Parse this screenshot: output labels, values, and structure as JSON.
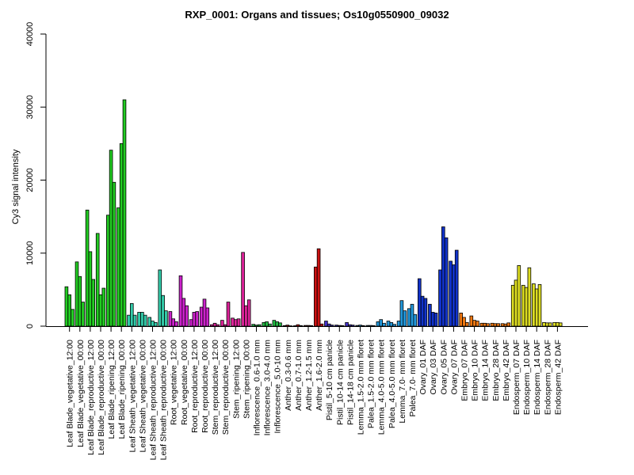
{
  "chart_data": {
    "type": "bar",
    "title": "RXP_0001: Organs and tissues; Os10g0550900_09032",
    "ylabel": "Cy3 signal intensity",
    "xlabel": "",
    "ylim": [
      0,
      40000
    ],
    "yticks": [
      0,
      10000,
      20000,
      30000,
      40000
    ],
    "grid": false,
    "legend": "none",
    "groups": [
      {
        "label": "Leaf Blade_vegetative_12:00",
        "color": "#22cc22",
        "values": [
          5400,
          4300,
          2300
        ]
      },
      {
        "label": "Leaf Blade_vegetative_00:00",
        "color": "#22cc22",
        "values": [
          8800,
          6800,
          3300
        ]
      },
      {
        "label": "Leaf Blade_reproductive_12:00",
        "color": "#22cc22",
        "values": [
          15900,
          10200,
          6400
        ]
      },
      {
        "label": "Leaf Blade_reproductive_00:00",
        "color": "#22cc22",
        "values": [
          12700,
          4300,
          5200
        ]
      },
      {
        "label": "Leaf Blade_ripening_12:00",
        "color": "#22cc22",
        "values": [
          15200,
          24100,
          19700
        ]
      },
      {
        "label": "Leaf Blade_ripening_00:00",
        "color": "#22cc22",
        "values": [
          16200,
          25000,
          31000
        ]
      },
      {
        "label": "Leaf Sheath_vegetative_12:00",
        "color": "#33ccaa",
        "values": [
          1500,
          3100,
          1500
        ]
      },
      {
        "label": "Leaf Sheath_vegetative_00:00",
        "color": "#33ccaa",
        "values": [
          1900,
          1900,
          1500
        ]
      },
      {
        "label": "Leaf Sheath_reproductive_12:00",
        "color": "#33ccaa",
        "values": [
          1200,
          700,
          500
        ]
      },
      {
        "label": "Leaf Sheath_reproductive_00:00",
        "color": "#33ccaa",
        "values": [
          7700,
          4200,
          2100
        ]
      },
      {
        "label": "Root_vegetative_12:00",
        "color": "#cc22cc",
        "values": [
          2000,
          1000,
          600
        ]
      },
      {
        "label": "Root_vegetative_00:00",
        "color": "#cc22cc",
        "values": [
          6900,
          3800,
          2800
        ]
      },
      {
        "label": "Root_reproductive_12:00",
        "color": "#cc22cc",
        "values": [
          900,
          1900,
          2000
        ]
      },
      {
        "label": "Root_reproductive_00:00",
        "color": "#cc22cc",
        "values": [
          2600,
          3700,
          2500
        ]
      },
      {
        "label": "Stem_reproductive_12:00",
        "color": "#dd2299",
        "values": [
          200,
          400,
          200
        ]
      },
      {
        "label": "Stem_reproductive_00:00",
        "color": "#dd2299",
        "values": [
          800,
          200,
          3300
        ]
      },
      {
        "label": "Stem_ripening_12:00",
        "color": "#dd2299",
        "values": [
          1100,
          900,
          1000
        ]
      },
      {
        "label": "Stem_ripening_00:00",
        "color": "#dd2299",
        "values": [
          10100,
          2800,
          3600
        ]
      },
      {
        "label": "Inflorescence_0.6-1.0 mm",
        "color": "#22bb44",
        "values": [
          250,
          150,
          200
        ]
      },
      {
        "label": "Inflorescence_3.0-4.0 mm",
        "color": "#22bb44",
        "values": [
          500,
          600,
          300
        ]
      },
      {
        "label": "Inflorescence_5.0-10 mm",
        "color": "#22bb44",
        "values": [
          800,
          600,
          450
        ]
      },
      {
        "label": "Anther_0.3-0.6 mm",
        "color": "#cc1111",
        "values": [
          80,
          150,
          50
        ]
      },
      {
        "label": "Anther_0.7-1.0 mm",
        "color": "#cc1111",
        "values": [
          60,
          200,
          80
        ]
      },
      {
        "label": "Anther_1.2-1.5 mm",
        "color": "#cc1111",
        "values": [
          100,
          100,
          80
        ]
      },
      {
        "label": "Anther_1.6-2.0 mm",
        "color": "#cc1111",
        "values": [
          8100,
          10600,
          300
        ]
      },
      {
        "label": "Pistil_5-10 cm panicle",
        "color": "#4433cc",
        "values": [
          700,
          300,
          150
        ]
      },
      {
        "label": "Pistil_10-14 cm panicle",
        "color": "#4433cc",
        "values": [
          150,
          100,
          80
        ]
      },
      {
        "label": "Pistil_14-18 cm panicle",
        "color": "#4433cc",
        "values": [
          500,
          200,
          150
        ]
      },
      {
        "label": "Lemma_1.5-2.0 mm floret",
        "color": "#2299dd",
        "values": [
          100,
          150,
          80
        ]
      },
      {
        "label": "Palea_1.5-2.0 mm floret",
        "color": "#2299dd",
        "values": [
          100,
          100,
          80
        ]
      },
      {
        "label": "Lemma_4.0-5.0 mm floret",
        "color": "#2299dd",
        "values": [
          600,
          900,
          400
        ]
      },
      {
        "label": "Palea_4.0-5.0 mm floret",
        "color": "#2299dd",
        "values": [
          700,
          500,
          250
        ]
      },
      {
        "label": "Lemma_7.0- mm floret",
        "color": "#2299dd",
        "values": [
          700,
          3500,
          2100
        ]
      },
      {
        "label": "Palea_7.0- mm floret",
        "color": "#2299dd",
        "values": [
          2400,
          3000,
          1600
        ]
      },
      {
        "label": "Ovary_01 DAF",
        "color": "#1133cc",
        "values": [
          6500,
          4100,
          3800
        ]
      },
      {
        "label": "Ovary_03 DAF",
        "color": "#1133cc",
        "values": [
          3000,
          1900,
          1800
        ]
      },
      {
        "label": "Ovary_05 DAF",
        "color": "#1133cc",
        "values": [
          7700,
          13600,
          12100
        ]
      },
      {
        "label": "Ovary_07 DAF",
        "color": "#1133cc",
        "values": [
          8900,
          8400,
          10400
        ]
      },
      {
        "label": "Embryo_07 DAF",
        "color": "#ee7711",
        "values": [
          1800,
          1200,
          500
        ]
      },
      {
        "label": "Embryo_10 DAF",
        "color": "#ee7711",
        "values": [
          1400,
          800,
          700
        ]
      },
      {
        "label": "Embryo_14 DAF",
        "color": "#ee7711",
        "values": [
          400,
          400,
          350
        ]
      },
      {
        "label": "Embryo_28 DAF",
        "color": "#ee7711",
        "values": [
          400,
          350,
          350
        ]
      },
      {
        "label": "Embryo_42 DAF",
        "color": "#ee7711",
        "values": [
          350,
          300,
          450
        ]
      },
      {
        "label": "Endosperm_07 DAF",
        "color": "#dddd22",
        "values": [
          5600,
          6300,
          8300
        ]
      },
      {
        "label": "Endosperm_10 DAF",
        "color": "#dddd22",
        "values": [
          5600,
          5300,
          8000
        ]
      },
      {
        "label": "Endosperm_14 DAF",
        "color": "#dddd22",
        "values": [
          5800,
          5100,
          5700
        ]
      },
      {
        "label": "Endosperm_28 DAF",
        "color": "#dddd22",
        "values": [
          500,
          450,
          450
        ]
      },
      {
        "label": "Endosperm_42 DAF",
        "color": "#dddd22",
        "values": [
          500,
          500,
          450
        ]
      }
    ]
  }
}
